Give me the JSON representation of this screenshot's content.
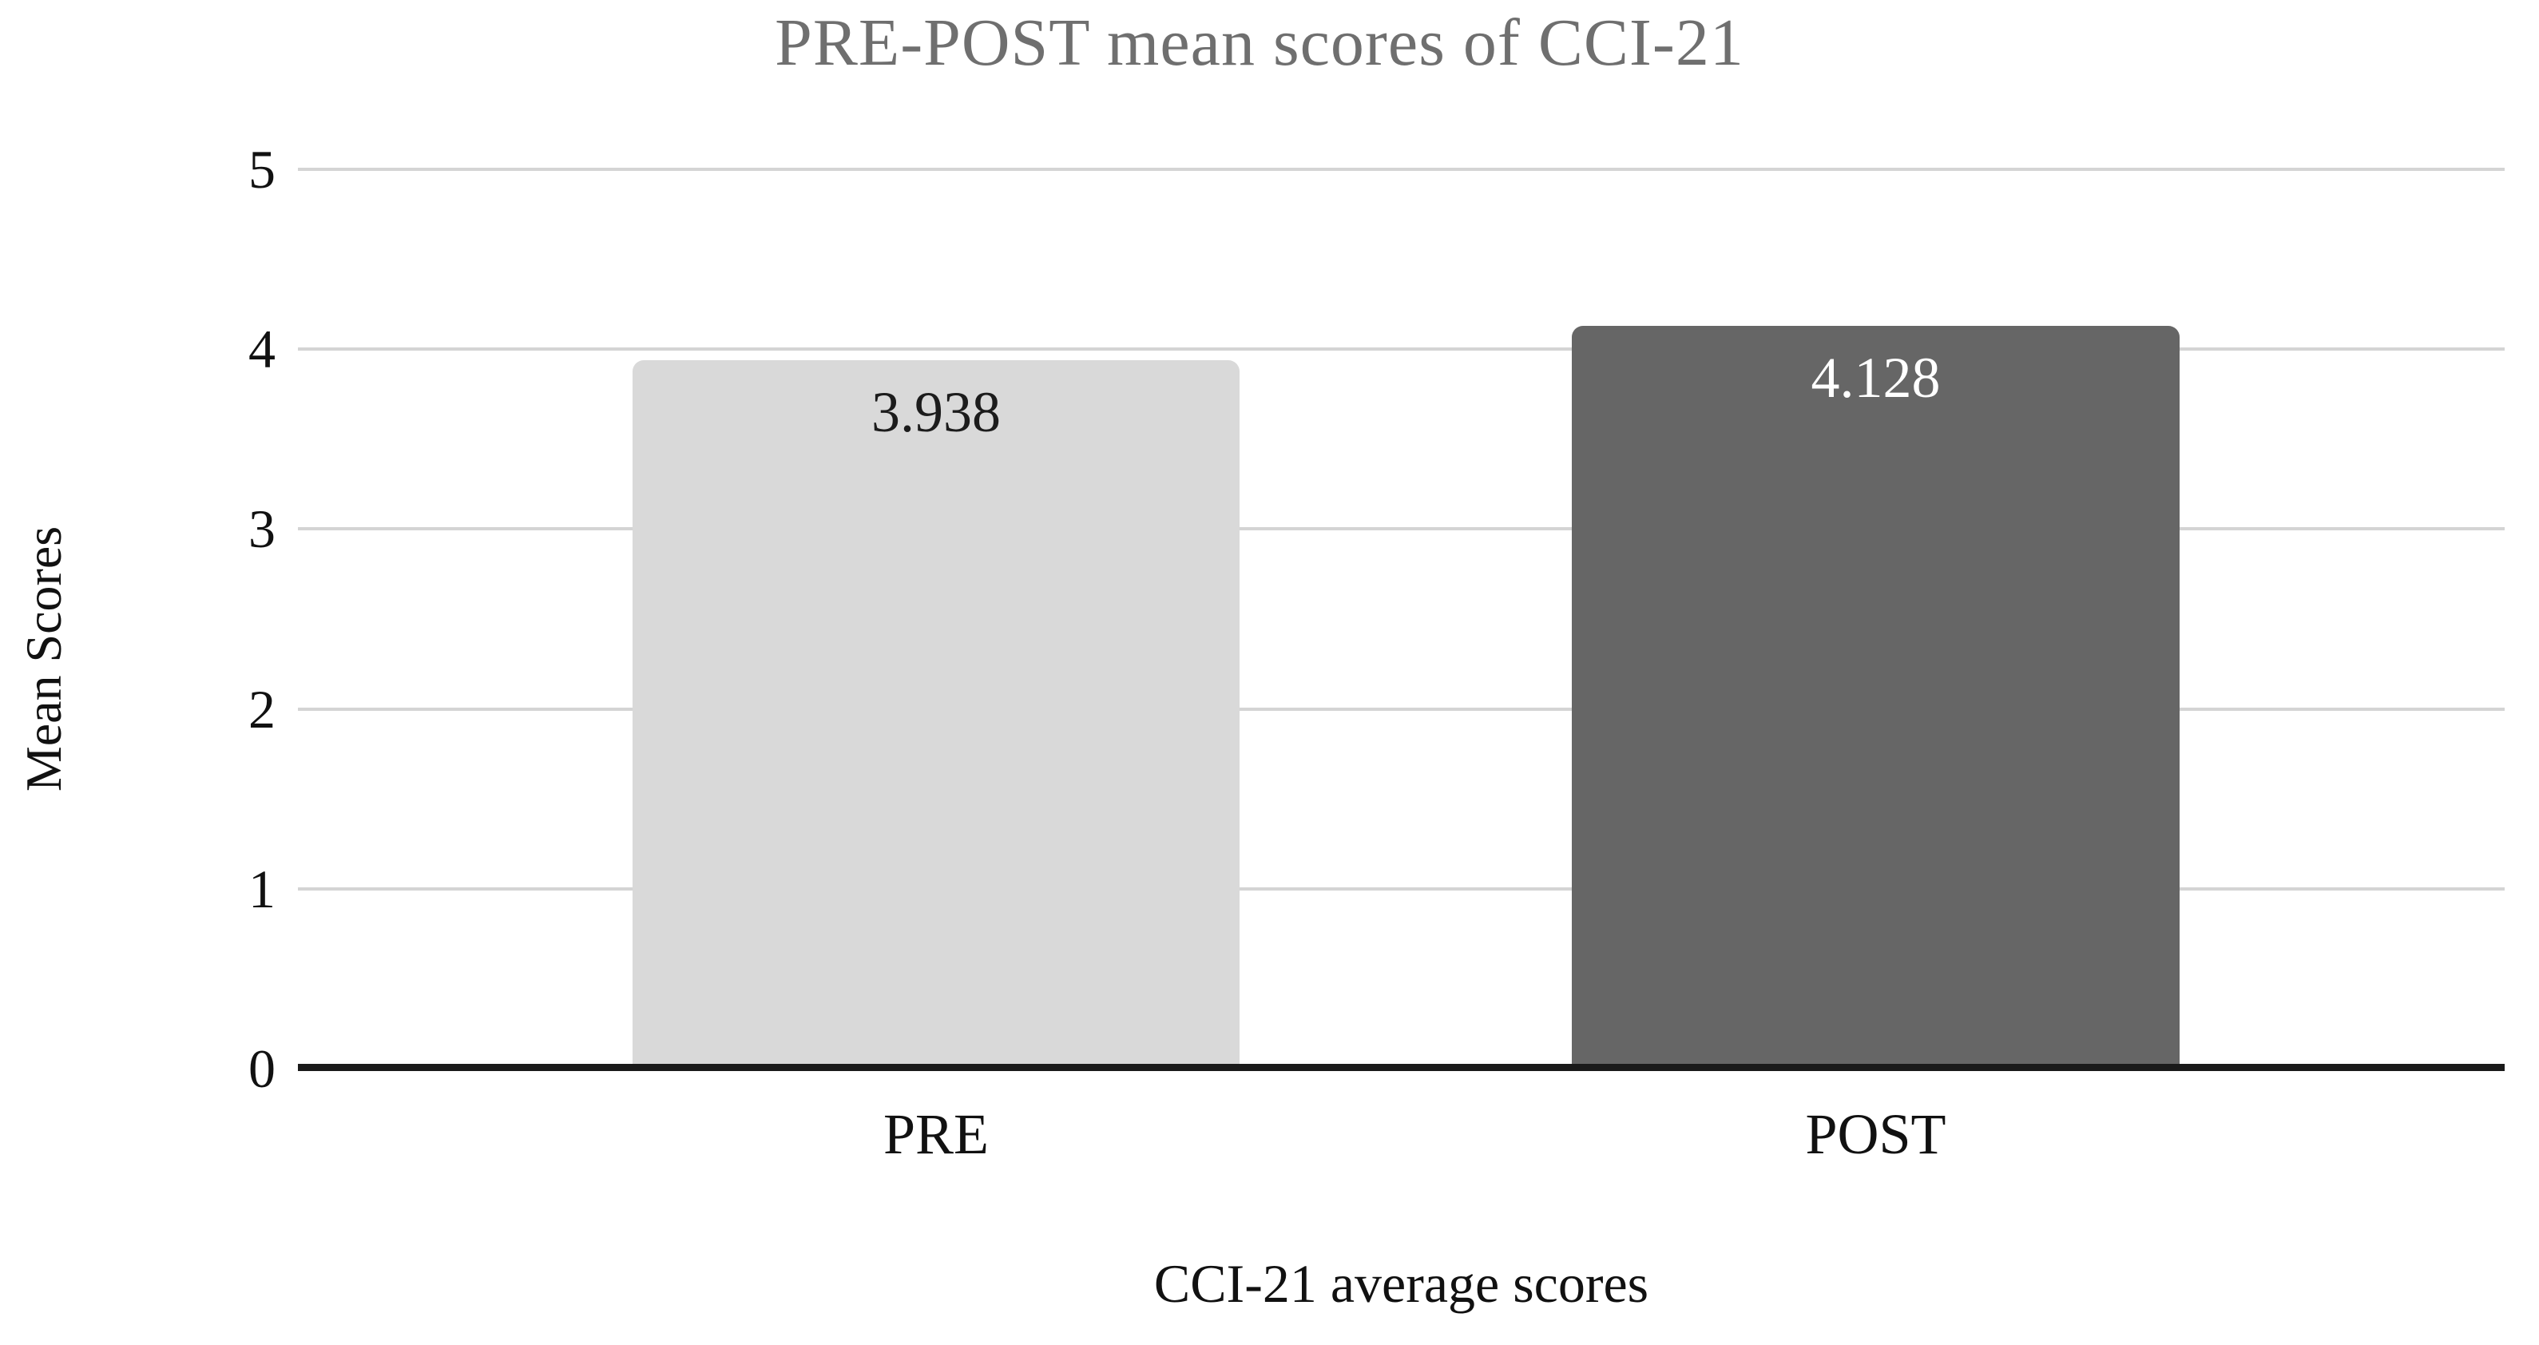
{
  "chart_data": {
    "type": "bar",
    "title": "PRE-POST mean scores of CCI-21",
    "xlabel": "CCI-21 average scores",
    "ylabel": "Mean Scores",
    "categories": [
      "PRE",
      "POST"
    ],
    "values": [
      3.938,
      4.128
    ],
    "value_labels": [
      "3.938",
      "4.128"
    ],
    "ylim": [
      0,
      5
    ],
    "yticks": [
      0,
      1,
      2,
      3,
      4,
      5
    ],
    "grid": true,
    "legend": "none",
    "bar_colors": [
      "#d9d9d9",
      "#666666"
    ],
    "value_label_colors": [
      "#1c1c1c",
      "#ffffff"
    ],
    "title_color": "#6f6f6f",
    "text_color": "#111111",
    "gridline_color": "#d4d4d4",
    "axis_color": "#1a1a1a",
    "background_color": "#ffffff"
  }
}
